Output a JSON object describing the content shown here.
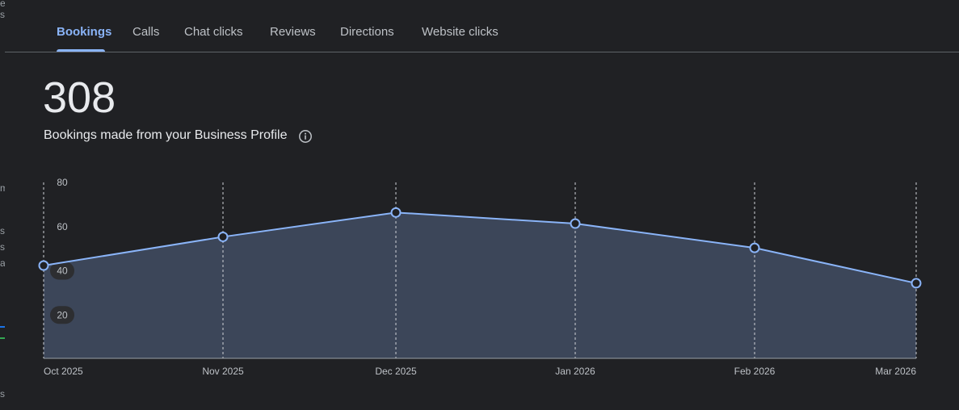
{
  "tabs": [
    {
      "label": "Bookings",
      "active": true
    },
    {
      "label": "Calls",
      "active": false
    },
    {
      "label": "Chat clicks",
      "active": false
    },
    {
      "label": "Reviews",
      "active": false
    },
    {
      "label": "Directions",
      "active": false
    },
    {
      "label": "Website clicks",
      "active": false
    }
  ],
  "summary": {
    "total": "308",
    "description": "Bookings made from your Business Profile",
    "info_icon": "info-icon"
  },
  "colors": {
    "background": "#202124",
    "accent": "#8ab4f8",
    "area_fill": "#3c4659",
    "text_primary": "#e8eaed",
    "text_secondary": "#bdc1c6"
  },
  "chart_data": {
    "type": "area",
    "x": [
      "Oct 2025",
      "Nov 2025",
      "Dec 2025",
      "Jan 2026",
      "Feb 2026",
      "Mar 2026"
    ],
    "series": [
      {
        "values": [
          42,
          55,
          66,
          61,
          50,
          34
        ]
      }
    ],
    "y_ticks": [
      20,
      40,
      60,
      80
    ],
    "ylim": [
      0,
      80
    ],
    "grid": "vertical-dashed",
    "markers": true
  }
}
